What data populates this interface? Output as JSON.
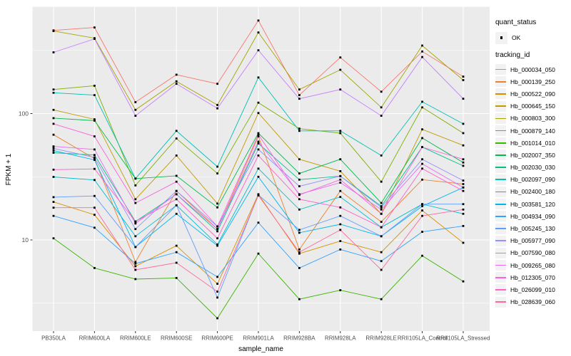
{
  "legend": {
    "quant_status_title": "quant_status",
    "ok_label": "OK",
    "tracking_title": "tracking_id"
  },
  "colors": {
    "panel_background": "#EBEBEB",
    "gridline": "#FFFFFF",
    "tick_text": "#4D4D4D",
    "point": "#000000"
  },
  "chart_data": {
    "type": "line",
    "title": "",
    "xlabel": "sample_name",
    "ylabel": "FPKM + 1",
    "y_scale": "log10",
    "grid": "on",
    "legend_position": "right",
    "point_shape": "small black square (quant_status = OK)",
    "yticks": [
      {
        "label": "100",
        "value": 100
      },
      {
        "label": "10",
        "value": 10
      }
    ],
    "y_minor_gridlines": [
      316.23,
      31.62,
      3.16
    ],
    "ylim": [
      1.9,
      690
    ],
    "categories": [
      "PB350LA",
      "RRIM600LA",
      "RRIM600LE",
      "RRIM600SE",
      "RRIM600PE",
      "RRIM901LA",
      "RRIM928BA",
      "RRIM928LA",
      "RRIM928LE",
      "RRII105LA_Control",
      "RRII105LA_Stressed"
    ],
    "quant_status_values": [
      "OK"
    ],
    "series": [
      {
        "name": "Hb_000034_050",
        "color": "#F8766D",
        "values": [
          455,
          480,
          123,
          203,
          172,
          545,
          140,
          278,
          149,
          310,
          196
        ]
      },
      {
        "name": "Hb_000139_250",
        "color": "#EA8331",
        "values": [
          68,
          44,
          6.7,
          24.4,
          12.2,
          66,
          8.4,
          24.4,
          13.9,
          30,
          27.7
        ]
      },
      {
        "name": "Hb_000522_090",
        "color": "#D89000",
        "values": [
          20,
          15.8,
          6.2,
          9,
          4.5,
          23,
          7.8,
          9.8,
          8,
          17.1,
          9.5
        ]
      },
      {
        "name": "Hb_000645_150",
        "color": "#C09B00",
        "values": [
          107,
          90,
          21,
          46.6,
          19.4,
          101,
          43.5,
          35,
          16.1,
          75,
          56
        ]
      },
      {
        "name": "Hb_000803_300",
        "color": "#A3A500",
        "values": [
          450,
          395,
          107,
          180,
          117,
          438,
          155,
          222,
          112,
          345,
          184
        ]
      },
      {
        "name": "Hb_000879_140",
        "color": "#7CAE00",
        "values": [
          155,
          166,
          27,
          63.5,
          33.6,
          122,
          76,
          70,
          28.9,
          112,
          70
        ]
      },
      {
        "name": "Hb_001014_010",
        "color": "#39B600",
        "values": [
          10.3,
          6,
          4.9,
          5,
          2.4,
          7.8,
          3.4,
          4,
          3.4,
          7.5,
          4.7
        ]
      },
      {
        "name": "Hb_002007_350",
        "color": "#00BB4E",
        "values": [
          92,
          88,
          30.6,
          32.2,
          18.1,
          70,
          33.6,
          43.5,
          19.6,
          64,
          41
        ]
      },
      {
        "name": "Hb_002030_030",
        "color": "#00C087",
        "values": [
          49,
          47,
          14,
          23,
          11.7,
          58,
          30,
          32,
          18.5,
          54.3,
          38.6
        ]
      },
      {
        "name": "Hb_002097_090",
        "color": "#00C0B2",
        "values": [
          146,
          140,
          30.6,
          73,
          38,
          193,
          73,
          73,
          46.6,
          124,
          83
        ]
      },
      {
        "name": "Hb_002400_180",
        "color": "#00BDD3",
        "values": [
          31.5,
          29.8,
          10.7,
          18.8,
          9.2,
          36.7,
          17.4,
          21.9,
          12.6,
          19.2,
          16.1
        ]
      },
      {
        "name": "Hb_003581_120",
        "color": "#00B4EF",
        "values": [
          51,
          43,
          8.8,
          16.1,
          9,
          31.6,
          11.4,
          13.3,
          10.7,
          18.5,
          26
        ]
      },
      {
        "name": "Hb_004934_090",
        "color": "#35A2FF",
        "values": [
          15.5,
          12.5,
          6.5,
          8,
          5.1,
          13.7,
          6,
          8.4,
          6.8,
          11.6,
          12.9
        ]
      },
      {
        "name": "Hb_005245_130",
        "color": "#619CFF",
        "values": [
          21.8,
          22.3,
          8.8,
          18.8,
          3.5,
          22.7,
          12,
          15.5,
          10.7,
          19.2,
          19.2
        ]
      },
      {
        "name": "Hb_005977_090",
        "color": "#9590FF",
        "values": [
          53,
          45,
          12.2,
          24.4,
          12.8,
          52,
          26.6,
          32,
          18.1,
          43.5,
          29.5
        ]
      },
      {
        "name": "Hb_007590_080",
        "color": "#C77CFF",
        "values": [
          305,
          390,
          96,
          172,
          110,
          317,
          131,
          155,
          96,
          280,
          131
        ]
      },
      {
        "name": "Hb_009265_080",
        "color": "#E76BF3",
        "values": [
          55,
          52,
          13.5,
          23,
          12.2,
          60,
          23,
          28.4,
          17.4,
          40,
          26
        ]
      },
      {
        "name": "Hb_012305_070",
        "color": "#FA62DB",
        "values": [
          83,
          66,
          19.6,
          28.9,
          12.8,
          68,
          22.7,
          30,
          16.1,
          54.3,
          43.5
        ]
      },
      {
        "name": "Hb_026099_010",
        "color": "#FF61C9",
        "values": [
          36,
          36.5,
          14,
          21,
          10.3,
          46.6,
          21,
          18.1,
          12.6,
          36.7,
          24.4
        ]
      },
      {
        "name": "Hb_028639_060",
        "color": "#FF689F",
        "values": [
          18,
          18,
          5.8,
          6.6,
          3.9,
          22.5,
          8,
          12,
          5.8,
          15.5,
          17.4
        ]
      }
    ]
  }
}
